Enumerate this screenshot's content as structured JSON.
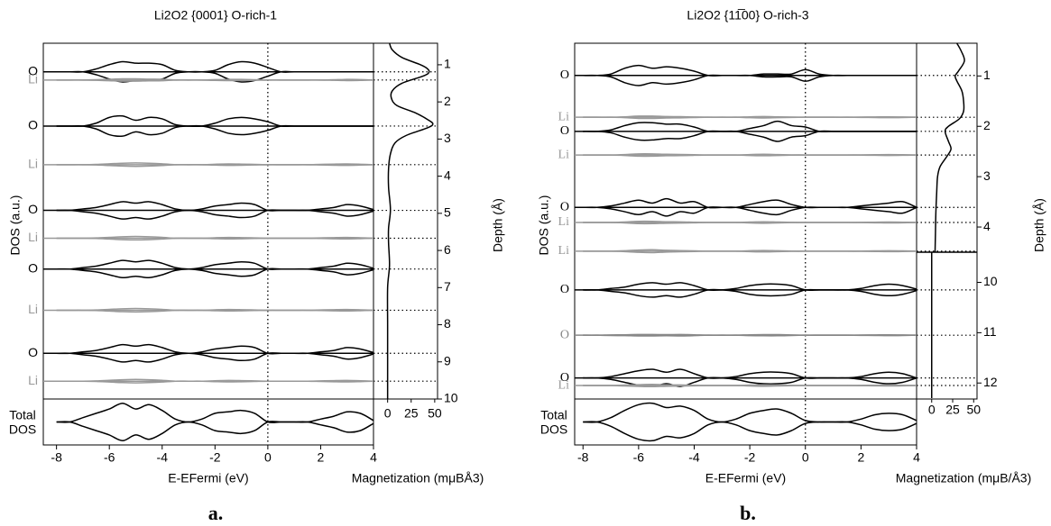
{
  "chart_data": [
    {
      "type": "dos-profile",
      "panel_label": "a.",
      "title": "Li2O2 {0001} O-rich-1",
      "xlabel": "E-EFermi (eV)",
      "ylabel": "DOS (a.u.)",
      "total_label": [
        "Total",
        "DOS"
      ],
      "xlim": [
        -8.5,
        4
      ],
      "xticks": [
        -8,
        -6,
        -4,
        -2,
        0,
        2,
        4
      ],
      "energies": [
        -8,
        -7.5,
        -7,
        -6.5,
        -6,
        -5.5,
        -5,
        -4.5,
        -4,
        -3.5,
        -3,
        -2.5,
        -2,
        -1.5,
        -1,
        -0.5,
        0,
        0.5,
        1,
        1.5,
        2,
        2.5,
        3,
        3.5,
        4
      ],
      "layers": [
        {
          "name": "O",
          "color": "#000000",
          "depth": 1.19,
          "values": [
            0,
            0,
            0,
            0.2,
            0.5,
            0.7,
            0.6,
            0.6,
            0.5,
            0.1,
            0,
            0,
            0.1,
            0.5,
            0.7,
            0.6,
            0.3,
            0,
            0,
            0,
            0,
            0,
            0,
            0,
            0
          ]
        },
        {
          "name": "Li",
          "color": "#999999",
          "depth": 1.41,
          "values": [
            0,
            0,
            0,
            0.02,
            0.05,
            0.08,
            0.08,
            0.06,
            0.05,
            0,
            0,
            0,
            0.03,
            0.04,
            0.04,
            0.02,
            0,
            0,
            0,
            0,
            0,
            0.02,
            0.04,
            0.03,
            0
          ]
        },
        {
          "name": "O",
          "color": "#000000",
          "depth": 2.65,
          "values": [
            0,
            0,
            0,
            0.2,
            0.6,
            0.7,
            0.4,
            0.6,
            0.5,
            0.1,
            0,
            0,
            0.2,
            0.5,
            0.6,
            0.5,
            0.3,
            0,
            0,
            0,
            0,
            0,
            0,
            0,
            0
          ]
        },
        {
          "name": "Li",
          "color": "#999999",
          "depth": 3.69,
          "values": [
            0,
            0,
            0,
            0.02,
            0.06,
            0.1,
            0.12,
            0.1,
            0.06,
            0,
            0,
            0,
            0.03,
            0.05,
            0.04,
            0.02,
            0,
            0,
            0,
            0,
            0.02,
            0.04,
            0.05,
            0.03,
            0
          ]
        },
        {
          "name": "O",
          "color": "#000000",
          "depth": 4.92,
          "values": [
            0,
            0,
            0.1,
            0.2,
            0.4,
            0.6,
            0.5,
            0.6,
            0.4,
            0.1,
            0,
            0.1,
            0.3,
            0.4,
            0.5,
            0.4,
            0,
            0,
            0,
            0,
            0.1,
            0.2,
            0.4,
            0.3,
            0.05
          ]
        },
        {
          "name": "Li",
          "color": "#999999",
          "depth": 5.67,
          "values": [
            0,
            0,
            0,
            0.02,
            0.06,
            0.1,
            0.12,
            0.1,
            0.06,
            0,
            0,
            0,
            0.03,
            0.05,
            0.04,
            0.02,
            0,
            0,
            0,
            0,
            0.02,
            0.04,
            0.05,
            0.03,
            0
          ]
        },
        {
          "name": "O",
          "color": "#000000",
          "depth": 6.5,
          "values": [
            0,
            0,
            0.1,
            0.2,
            0.4,
            0.6,
            0.5,
            0.6,
            0.4,
            0.1,
            0,
            0.1,
            0.3,
            0.4,
            0.5,
            0.4,
            0,
            0,
            0,
            0,
            0.1,
            0.2,
            0.4,
            0.3,
            0.05
          ]
        },
        {
          "name": "Li",
          "color": "#999999",
          "depth": 7.61,
          "values": [
            0,
            0,
            0,
            0.02,
            0.06,
            0.1,
            0.12,
            0.1,
            0.06,
            0,
            0,
            0,
            0.03,
            0.05,
            0.04,
            0.02,
            0,
            0,
            0,
            0,
            0.02,
            0.04,
            0.05,
            0.03,
            0
          ]
        },
        {
          "name": "O",
          "color": "#000000",
          "depth": 8.77,
          "values": [
            0,
            0,
            0.1,
            0.2,
            0.4,
            0.6,
            0.5,
            0.6,
            0.4,
            0.1,
            0,
            0.1,
            0.3,
            0.4,
            0.5,
            0.4,
            0,
            0,
            0,
            0,
            0.1,
            0.2,
            0.4,
            0.3,
            0.05
          ]
        },
        {
          "name": "Li",
          "color": "#999999",
          "depth": 9.52,
          "values": [
            0,
            0,
            0,
            0.02,
            0.06,
            0.1,
            0.12,
            0.1,
            0.06,
            0,
            0,
            0,
            0.03,
            0.05,
            0.04,
            0.02,
            0,
            0,
            0,
            0,
            0.02,
            0.04,
            0.05,
            0.03,
            0
          ]
        }
      ],
      "total": {
        "color": "#000000",
        "values": [
          0,
          0,
          0.3,
          0.6,
          0.9,
          1.3,
          0.9,
          1.2,
          0.8,
          0.2,
          0,
          0.2,
          0.6,
          0.7,
          0.8,
          0.6,
          0,
          0,
          0,
          0,
          0.2,
          0.4,
          0.7,
          0.6,
          0.1
        ]
      },
      "magnetization": {
        "xlabel": "Magnetization (mμBÅ3)",
        "xlim": [
          -15,
          53
        ],
        "xticks": [
          0,
          25,
          50
        ],
        "color": "#000000",
        "depth": [
          0.42,
          0.6,
          0.8,
          1.0,
          1.1,
          1.2,
          1.3,
          1.5,
          1.7,
          1.9,
          2.1,
          2.3,
          2.5,
          2.6,
          2.7,
          2.9,
          3.1,
          3.4,
          3.8,
          4.3,
          4.9,
          5.4,
          5.8,
          6.4,
          7,
          8,
          9,
          10
        ],
        "values": [
          2,
          5,
          15,
          35,
          42,
          44,
          38,
          15,
          5,
          4,
          10,
          30,
          44,
          48,
          42,
          20,
          8,
          3,
          1,
          1,
          3,
          1,
          1,
          2,
          0,
          0,
          0,
          0
        ]
      },
      "depth_axis": {
        "label": "Depth (Å)",
        "segments": [
          {
            "ylim": [
              0.42,
              10
            ],
            "yticks": [
              1,
              2,
              3,
              4,
              5,
              6,
              7,
              8,
              9,
              10
            ]
          }
        ]
      }
    },
    {
      "type": "dos-profile",
      "panel_label": "b.",
      "title": "Li2O2 {11̅00} O-rich-3",
      "xlabel": "E-EFermi (eV)",
      "ylabel": "DOS (a.u.)",
      "total_label": [
        "Total",
        "DOS"
      ],
      "xlim": [
        -8.3,
        4
      ],
      "xticks": [
        -8,
        -6,
        -4,
        -2,
        0,
        2,
        4
      ],
      "energies": [
        -8,
        -7.5,
        -7,
        -6.5,
        -6,
        -5.5,
        -5,
        -4.5,
        -4,
        -3.5,
        -3,
        -2.5,
        -2,
        -1.5,
        -1,
        -0.5,
        0,
        0.5,
        1,
        1.5,
        2,
        2.5,
        3,
        3.5,
        4
      ],
      "layers": [
        {
          "name": "O",
          "color": "#000000",
          "depth": 0.99,
          "values": [
            0,
            0,
            0.1,
            0.5,
            0.7,
            0.5,
            0.6,
            0.5,
            0.3,
            0,
            0,
            0,
            0,
            0.1,
            0.1,
            0.1,
            0.4,
            0.1,
            0,
            0,
            0,
            0,
            0,
            0,
            0
          ]
        },
        {
          "name": "Li",
          "color": "#999999",
          "depth": 1.82,
          "values": [
            0,
            0,
            0,
            0.03,
            0.08,
            0.08,
            0.05,
            0.04,
            0.02,
            0,
            0,
            0,
            0.03,
            0.05,
            0.03,
            0.01,
            0,
            0,
            0,
            0,
            0.01,
            0.02,
            0.03,
            0.02,
            0
          ]
        },
        {
          "name": "O",
          "color": "#000000",
          "depth": 2.1,
          "values": [
            0,
            0,
            0.1,
            0.4,
            0.6,
            0.6,
            0.5,
            0.5,
            0.3,
            0,
            0,
            0,
            0.2,
            0.4,
            0.7,
            0.4,
            0.3,
            0,
            0,
            0,
            0,
            0,
            0,
            0,
            0
          ]
        },
        {
          "name": "Li",
          "color": "#999999",
          "depth": 2.57,
          "values": [
            0,
            0,
            0,
            0.03,
            0.08,
            0.08,
            0.05,
            0.04,
            0.02,
            0,
            0,
            0,
            0.03,
            0.05,
            0.03,
            0.01,
            0,
            0,
            0,
            0,
            0.01,
            0.02,
            0.03,
            0.02,
            0
          ]
        },
        {
          "name": "O",
          "color": "#000000",
          "depth": 3.61,
          "values": [
            0,
            0,
            0.1,
            0.3,
            0.5,
            0.3,
            0.6,
            0.3,
            0.4,
            0,
            0,
            0,
            0.2,
            0.4,
            0.5,
            0.2,
            0,
            0,
            0,
            0,
            0.1,
            0.2,
            0.3,
            0.4,
            0
          ]
        },
        {
          "name": "Li",
          "color": "#999999",
          "depth": 3.91,
          "values": [
            0,
            0,
            0,
            0.03,
            0.08,
            0.08,
            0.05,
            0.04,
            0.02,
            0,
            0,
            0,
            0.03,
            0.05,
            0.03,
            0.01,
            0,
            0,
            0,
            0,
            0.01,
            0.02,
            0.03,
            0.02,
            0
          ]
        },
        {
          "name": "Li",
          "color": "#999999",
          "depth": 4.48,
          "values": [
            0,
            0,
            0,
            0.03,
            0.08,
            0.1,
            0.06,
            0.04,
            0.02,
            0,
            0,
            0,
            0.03,
            0.05,
            0.03,
            0.01,
            0,
            0,
            0,
            0,
            0.01,
            0.02,
            0.03,
            0.02,
            0
          ]
        },
        {
          "name": "O",
          "color": "#000000",
          "depth": 10.15,
          "values": [
            0,
            0,
            0.1,
            0.2,
            0.4,
            0.5,
            0.4,
            0.5,
            0.3,
            0,
            0,
            0.1,
            0.3,
            0.4,
            0.4,
            0.3,
            0,
            0,
            0,
            0,
            0.1,
            0.3,
            0.4,
            0.3,
            0.05
          ]
        },
        {
          "name": "O",
          "color": "#888888",
          "depth": 11.05,
          "values": [
            0,
            0,
            0.02,
            0.03,
            0.05,
            0.05,
            0.04,
            0.05,
            0.03,
            0,
            0,
            0,
            0.03,
            0.04,
            0.04,
            0.02,
            0,
            0,
            0,
            0,
            0.01,
            0.02,
            0.03,
            0.02,
            0
          ]
        },
        {
          "name": "O",
          "color": "#000000",
          "depth": 11.9,
          "values": [
            0,
            0,
            0.1,
            0.3,
            0.5,
            0.6,
            0.4,
            0.6,
            0.3,
            0,
            0,
            0.1,
            0.3,
            0.4,
            0.4,
            0.3,
            0,
            0,
            0,
            0,
            0.1,
            0.3,
            0.4,
            0.3,
            0
          ]
        },
        {
          "name": "Li",
          "color": "#999999",
          "depth": 12.05,
          "values": [
            0,
            0,
            0,
            0.03,
            0.06,
            0.08,
            0.05,
            0.04,
            0.02,
            0,
            0,
            0,
            0.03,
            0.05,
            0.03,
            0.01,
            0,
            0,
            0,
            0,
            0.01,
            0.02,
            0.03,
            0.02,
            0
          ]
        }
      ],
      "total": {
        "color": "#000000",
        "values": [
          0,
          0,
          0.3,
          0.8,
          1.2,
          1.3,
          1.0,
          1.1,
          0.8,
          0.2,
          0,
          0.2,
          0.6,
          0.8,
          0.9,
          0.6,
          0.1,
          0,
          0,
          0,
          0.2,
          0.5,
          0.6,
          0.5,
          0.1
        ]
      },
      "magnetization": {
        "xlabel": "Magnetization (mμB/Å3)",
        "xlim": [
          -18,
          54
        ],
        "xticks": [
          0,
          25,
          50
        ],
        "color": "#000000",
        "depth": [
          0.35,
          0.5,
          0.7,
          0.9,
          1.0,
          1.1,
          1.3,
          1.5,
          1.7,
          1.85,
          2.0,
          2.1,
          2.3,
          2.45,
          2.6,
          2.8,
          3.0,
          3.3,
          3.7,
          4.1,
          4.5,
          null,
          9.4,
          12.3
        ],
        "values": [
          30,
          35,
          39,
          32,
          28,
          30,
          36,
          38,
          38,
          33,
          20,
          16,
          20,
          23,
          18,
          10,
          7,
          6,
          5,
          4.5,
          4,
          null,
          0,
          0
        ]
      },
      "depth_axis": {
        "label": "Depth (Å)",
        "segments": [
          {
            "ylim": [
              0.35,
              4.5
            ],
            "yticks": [
              1,
              2,
              3,
              4
            ]
          },
          {
            "ylim": [
              9.4,
              12.3
            ],
            "yticks": [
              10,
              11,
              12
            ]
          }
        ]
      }
    }
  ]
}
